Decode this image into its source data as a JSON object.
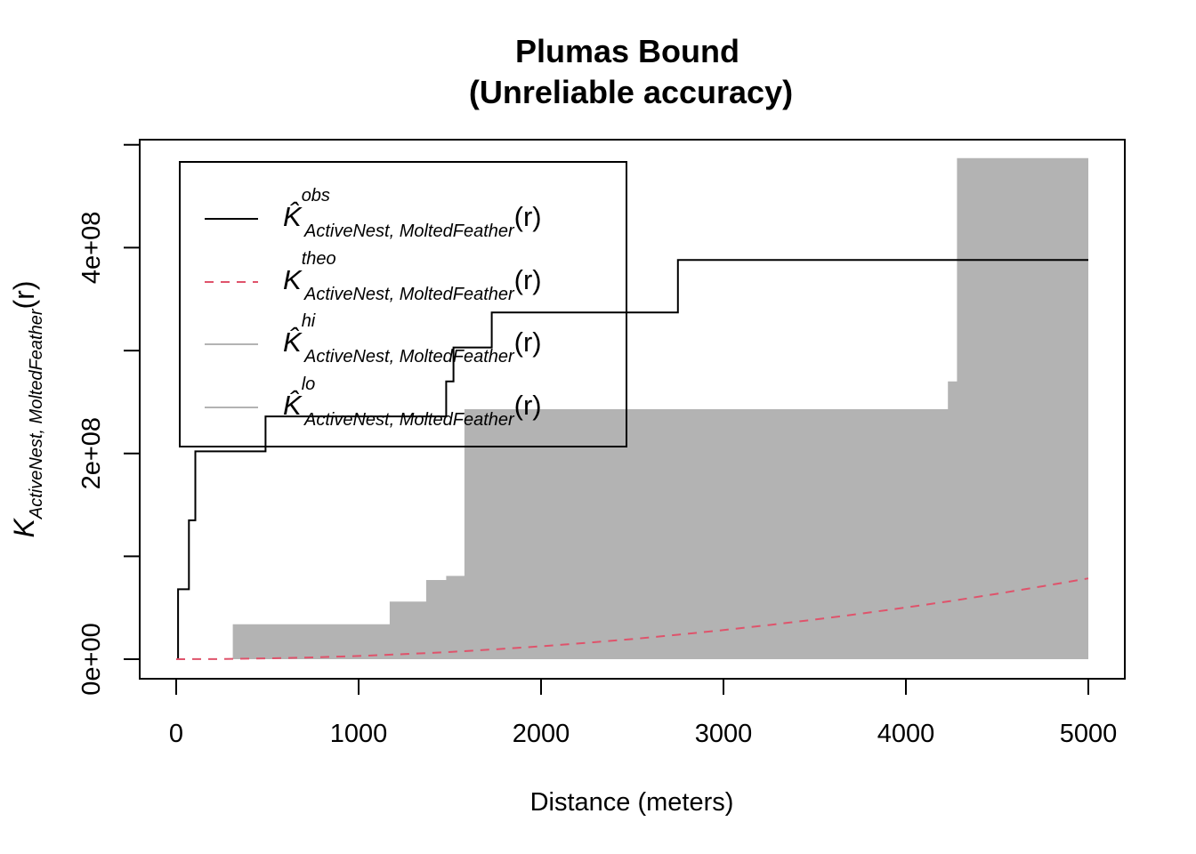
{
  "chart_data": {
    "type": "line",
    "title": [
      "Plumas Bound",
      "(Unreliable accuracy)"
    ],
    "xlabel": "Distance (meters)",
    "ylabel": {
      "main": "K",
      "sub": "ActiveNest, MoltedFeather",
      "arg": "(r)"
    },
    "xlim": [
      -200,
      5200
    ],
    "ylim": [
      -19000000,
      505000000
    ],
    "x_ticks": [
      0,
      1000,
      2000,
      3000,
      4000,
      5000
    ],
    "x_tick_labels": [
      "0",
      "1000",
      "2000",
      "3000",
      "4000",
      "5000"
    ],
    "y_ticks": [
      0,
      100000000,
      200000000,
      300000000,
      400000000,
      500000000
    ],
    "y_tick_labels": [
      "0e+00",
      "",
      "2e+08",
      "",
      "4e+08",
      ""
    ],
    "legend_position": "top-left",
    "series": [
      {
        "name": {
          "hat": "K̂",
          "sup": "obs",
          "sub": "ActiveNest, MoltedFeather",
          "arg": "(r)"
        },
        "kind": "step",
        "color": "#000000",
        "dash": "solid",
        "points": [
          [
            0,
            0
          ],
          [
            10,
            0
          ],
          [
            10,
            68000000
          ],
          [
            70,
            68000000
          ],
          [
            70,
            135000000
          ],
          [
            105,
            135000000
          ],
          [
            105,
            202000000
          ],
          [
            490,
            202000000
          ],
          [
            490,
            236000000
          ],
          [
            1480,
            236000000
          ],
          [
            1480,
            270000000
          ],
          [
            1520,
            270000000
          ],
          [
            1520,
            303000000
          ],
          [
            1730,
            303000000
          ],
          [
            1730,
            337000000
          ],
          [
            2750,
            337000000
          ],
          [
            2750,
            388000000
          ],
          [
            5000,
            388000000
          ]
        ]
      },
      {
        "name": {
          "hat": "K",
          "sup": "theo",
          "sub": "ActiveNest, MoltedFeather",
          "arg": "(r)"
        },
        "kind": "curve",
        "color": "#DF536B",
        "dash": "dashed",
        "points": [
          [
            0,
            0
          ],
          [
            250,
            196000
          ],
          [
            500,
            785000
          ],
          [
            750,
            1770000
          ],
          [
            1000,
            3140000
          ],
          [
            1250,
            4910000
          ],
          [
            1500,
            7070000
          ],
          [
            1750,
            9620000
          ],
          [
            2000,
            12600000
          ],
          [
            2250,
            15900000
          ],
          [
            2500,
            19600000
          ],
          [
            2750,
            23800000
          ],
          [
            3000,
            28300000
          ],
          [
            3250,
            33200000
          ],
          [
            3500,
            38500000
          ],
          [
            3750,
            44200000
          ],
          [
            4000,
            50300000
          ],
          [
            4250,
            56700000
          ],
          [
            4500,
            63600000
          ],
          [
            4750,
            70900000
          ],
          [
            5000,
            78500000
          ]
        ]
      },
      {
        "name": {
          "hat": "K̂",
          "sup": "hi",
          "sub": "ActiveNest, MoltedFeather",
          "arg": "(r)"
        },
        "kind": "envelope-upper",
        "color": "#B3B3B3",
        "dash": "solid",
        "points": [
          [
            0,
            0
          ],
          [
            310,
            0
          ],
          [
            310,
            34000000
          ],
          [
            1170,
            34000000
          ],
          [
            1170,
            56000000
          ],
          [
            1370,
            56000000
          ],
          [
            1370,
            77000000
          ],
          [
            1480,
            77000000
          ],
          [
            1480,
            81000000
          ],
          [
            1580,
            81000000
          ],
          [
            1580,
            243000000
          ],
          [
            4230,
            243000000
          ],
          [
            4230,
            270000000
          ],
          [
            4280,
            270000000
          ],
          [
            4280,
            487000000
          ],
          [
            5000,
            487000000
          ]
        ]
      },
      {
        "name": {
          "hat": "K̂",
          "sup": "lo",
          "sub": "ActiveNest, MoltedFeather",
          "arg": "(r)"
        },
        "kind": "envelope-lower",
        "color": "#B3B3B3",
        "dash": "solid",
        "points": [
          [
            0,
            0
          ],
          [
            5000,
            0
          ]
        ]
      }
    ]
  }
}
